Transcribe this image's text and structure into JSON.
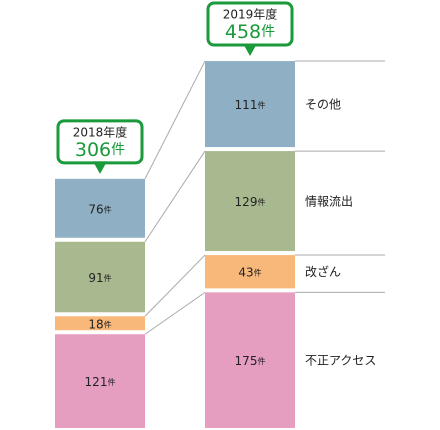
{
  "chart_data": {
    "type": "stacked-bar",
    "categories": [
      "2018年度",
      "2019年度"
    ],
    "totals": [
      306,
      458
    ],
    "unit": "件",
    "series": [
      {
        "name": "不正アクセス",
        "color": "#e59dc0",
        "values": [
          121,
          175
        ]
      },
      {
        "name": "改ざん",
        "color": "#f8b87a",
        "values": [
          18,
          43
        ]
      },
      {
        "name": "情報流出",
        "color": "#a9b98f",
        "values": [
          91,
          129
        ]
      },
      {
        "name": "その他",
        "color": "#8fb0c4",
        "values": [
          76,
          111
        ]
      }
    ],
    "callout_color": "#1a9a3a"
  }
}
